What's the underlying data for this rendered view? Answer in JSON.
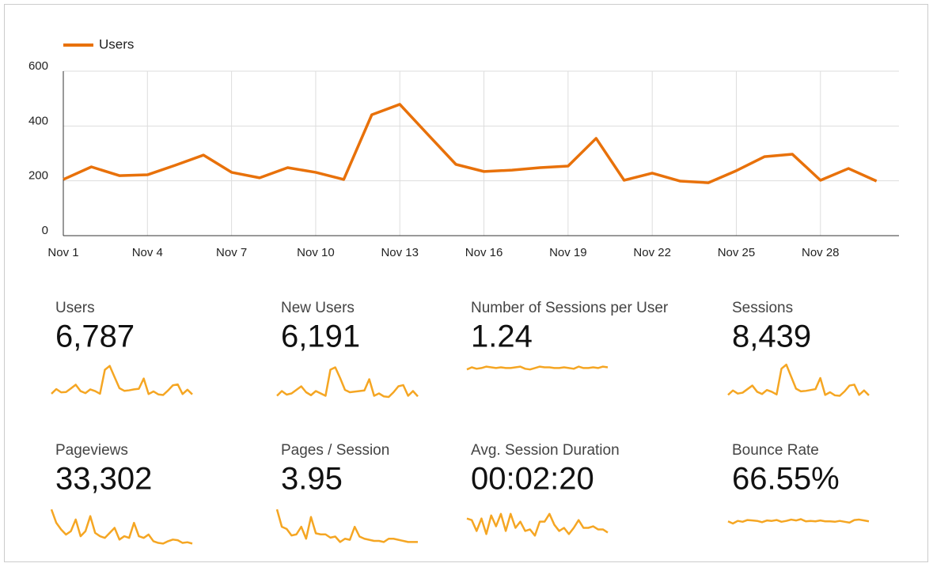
{
  "chart_data": {
    "type": "line",
    "categories": [
      "Nov 1",
      null,
      null,
      "Nov 4",
      null,
      null,
      "Nov 7",
      null,
      null,
      "Nov 10",
      null,
      null,
      "Nov 13",
      null,
      null,
      "Nov 16",
      null,
      null,
      "Nov 19",
      null,
      null,
      "Nov 22",
      null,
      null,
      "Nov 25",
      null,
      null,
      "Nov 28",
      null,
      null
    ],
    "series": [
      {
        "name": "Users",
        "color": "#e8710a",
        "values": [
          205,
          251,
          219,
          222,
          257,
          294,
          231,
          211,
          248,
          231,
          205,
          441,
          479,
          369,
          260,
          234,
          239,
          248,
          254,
          355,
          202,
          228,
          199,
          193,
          237,
          288,
          297,
          202,
          245,
          199
        ]
      }
    ],
    "ylim": [
      0,
      600
    ],
    "yticks": [
      0,
      200,
      400,
      600
    ],
    "grid": true,
    "legend": "top-left"
  },
  "spark_color": "#f5a623",
  "metrics": [
    {
      "label": "Users",
      "value": "6,787",
      "spark_ylim": [
        150,
        500
      ]
    },
    {
      "label": "New Users",
      "value": "6,191",
      "spark_ylim": [
        150,
        450
      ],
      "sparkline": [
        180,
        220,
        190,
        200,
        230,
        260,
        210,
        185,
        220,
        200,
        180,
        400,
        420,
        330,
        230,
        210,
        215,
        220,
        225,
        320,
        180,
        200,
        175,
        170,
        210,
        260,
        270,
        180,
        220,
        175
      ]
    },
    {
      "label": "Number of Sessions per User",
      "value": "1.24",
      "spark_ylim": [
        0.8,
        1.3
      ],
      "sparkline": [
        1.22,
        1.25,
        1.23,
        1.24,
        1.26,
        1.25,
        1.24,
        1.25,
        1.24,
        1.24,
        1.25,
        1.26,
        1.23,
        1.22,
        1.24,
        1.26,
        1.25,
        1.25,
        1.24,
        1.24,
        1.25,
        1.24,
        1.23,
        1.26,
        1.24,
        1.24,
        1.25,
        1.24,
        1.26,
        1.25
      ]
    },
    {
      "label": "Sessions",
      "value": "8,439",
      "spark_ylim": [
        200,
        600
      ],
      "sparkline": [
        250,
        300,
        265,
        275,
        315,
        355,
        285,
        260,
        305,
        285,
        255,
        545,
        590,
        455,
        320,
        290,
        295,
        305,
        315,
        440,
        250,
        280,
        245,
        240,
        290,
        355,
        365,
        250,
        300,
        245
      ]
    },
    {
      "label": "Pageviews",
      "value": "33,302",
      "spark_ylim": [
        700,
        2000
      ],
      "sparkline": [
        1900,
        1500,
        1300,
        1150,
        1250,
        1600,
        1100,
        1250,
        1700,
        1200,
        1100,
        1050,
        1200,
        1350,
        1000,
        1100,
        1050,
        1500,
        1100,
        1050,
        1150,
        950,
        900,
        880,
        950,
        1000,
        980,
        900,
        920,
        880
      ]
    },
    {
      "label": "Pages / Session",
      "value": "3.95",
      "spark_ylim": [
        2.5,
        6.5
      ],
      "sparkline": [
        6.2,
        4.6,
        4.4,
        3.8,
        3.9,
        4.6,
        3.5,
        5.5,
        4.0,
        3.9,
        3.9,
        3.6,
        3.7,
        3.2,
        3.5,
        3.4,
        4.6,
        3.7,
        3.5,
        3.4,
        3.3,
        3.3,
        3.2,
        3.5,
        3.5,
        3.4,
        3.3,
        3.2,
        3.2,
        3.2
      ]
    },
    {
      "label": "Avg. Session Duration",
      "value": "00:02:20",
      "spark_ylim": [
        60,
        200
      ],
      "sparkline": [
        160,
        155,
        120,
        160,
        110,
        170,
        135,
        175,
        120,
        175,
        130,
        150,
        120,
        125,
        105,
        150,
        150,
        175,
        140,
        120,
        130,
        110,
        130,
        155,
        130,
        130,
        135,
        125,
        125,
        115
      ]
    },
    {
      "label": "Bounce Rate",
      "value": "66.55%",
      "spark_ylim": [
        60,
        70
      ],
      "sparkline": [
        66.5,
        66.0,
        66.6,
        66.4,
        66.8,
        66.7,
        66.6,
        66.3,
        66.7,
        66.6,
        66.8,
        66.4,
        66.6,
        66.9,
        66.7,
        67.0,
        66.5,
        66.6,
        66.5,
        66.7,
        66.5,
        66.5,
        66.4,
        66.6,
        66.4,
        66.2,
        66.8,
        66.9,
        66.7,
        66.5
      ]
    }
  ]
}
